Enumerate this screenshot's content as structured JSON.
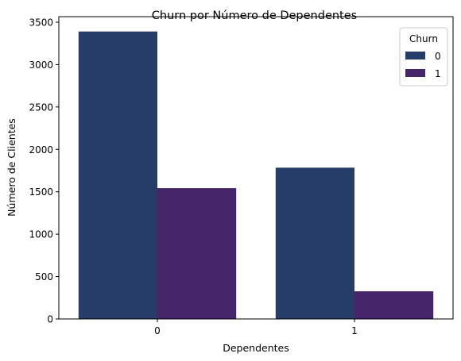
{
  "chart_data": {
    "type": "bar",
    "title": "Churn por Número de Dependentes",
    "xlabel": "Dependentes",
    "ylabel": "Número de Clientes",
    "categories": [
      "0",
      "1"
    ],
    "series": [
      {
        "name": "0",
        "values": [
          3390,
          1784
        ],
        "color": "#253d67"
      },
      {
        "name": "1",
        "values": [
          1543,
          326
        ],
        "color": "#45266b"
      }
    ],
    "ylim": [
      0,
      3565
    ],
    "yticks": [
      0,
      500,
      1000,
      1500,
      2000,
      2500,
      3000,
      3500
    ],
    "legend": {
      "title": "Churn",
      "placement": "top-right"
    },
    "grid": false
  }
}
